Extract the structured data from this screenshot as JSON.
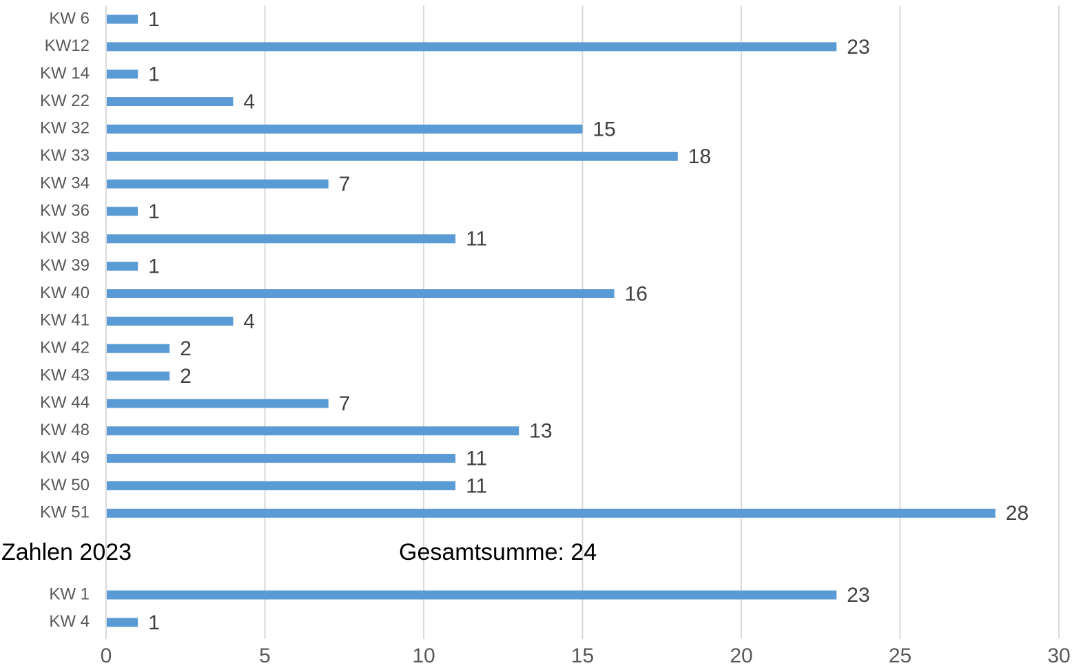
{
  "chart_data": {
    "type": "bar",
    "orientation": "horizontal",
    "xlim": [
      0,
      30
    ],
    "x_ticks": [
      "0",
      "5",
      "10",
      "15",
      "20",
      "25",
      "30"
    ],
    "grid": true,
    "bar_color": "#5b9bd5",
    "sections": [
      {
        "categories": [
          "KW 6",
          "KW12",
          "KW 14",
          "KW 22",
          "KW 32",
          "KW 33",
          "KW 34",
          "KW 36",
          "KW 38",
          "KW 39",
          "KW 40",
          "KW 41",
          "KW 42",
          "KW 43",
          "KW 44",
          "KW 48",
          "KW 49",
          "KW 50",
          "KW 51"
        ],
        "values": [
          1,
          23,
          1,
          4,
          15,
          18,
          7,
          1,
          11,
          1,
          16,
          4,
          2,
          2,
          7,
          13,
          11,
          11,
          28
        ]
      },
      {
        "header_left": "Zahlen 2023",
        "header_right": "Gesamtsumme: 24",
        "categories": [
          "KW 1",
          "KW 4"
        ],
        "values": [
          23,
          1
        ]
      }
    ]
  }
}
